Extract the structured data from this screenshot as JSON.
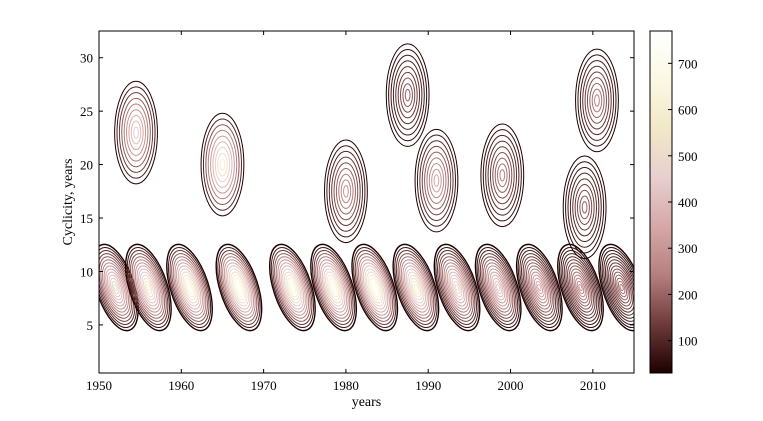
{
  "chart_data": {
    "type": "heatmap",
    "title": "",
    "xlabel": "years",
    "ylabel": "Cyclicity, years",
    "xlim": [
      1950,
      2015
    ],
    "ylim": [
      0.5,
      32.5
    ],
    "x_ticks": [
      1950,
      1960,
      1970,
      1980,
      1990,
      2000,
      2010
    ],
    "y_ticks": [
      5,
      10,
      15,
      20,
      25,
      30
    ],
    "colorbar": {
      "ticks": [
        100,
        200,
        300,
        400,
        500,
        600,
        700
      ],
      "range": [
        30,
        770
      ],
      "colormap": "pink",
      "stops": [
        "#1e0000",
        "#6e3a3a",
        "#b57f7f",
        "#d6a8a8",
        "#e8cfcf",
        "#f2e8c8",
        "#fbf8e4",
        "#ffffff"
      ]
    },
    "grid": false,
    "style": "contour lines",
    "band": {
      "center_period": 8.5,
      "cycles": [
        {
          "x": 1952.0,
          "amplitude": 520
        },
        {
          "x": 1956.0,
          "amplitude": 600
        },
        {
          "x": 1961.0,
          "amplitude": 690
        },
        {
          "x": 1967.0,
          "amplitude": 740
        },
        {
          "x": 1973.5,
          "amplitude": 700
        },
        {
          "x": 1978.5,
          "amplitude": 700
        },
        {
          "x": 1983.5,
          "amplitude": 740
        },
        {
          "x": 1988.5,
          "amplitude": 640
        },
        {
          "x": 1993.5,
          "amplitude": 520
        },
        {
          "x": 1998.5,
          "amplitude": 460
        },
        {
          "x": 2003.5,
          "amplitude": 380
        },
        {
          "x": 2008.5,
          "amplitude": 300
        },
        {
          "x": 2013.5,
          "amplitude": 240
        }
      ]
    },
    "islands": [
      {
        "x": 1965.0,
        "y": 20.0,
        "amplitude": 600
      },
      {
        "x": 1954.5,
        "y": 23.0,
        "amplitude": 450
      },
      {
        "x": 1980.0,
        "y": 17.5,
        "amplitude": 300
      },
      {
        "x": 1991.0,
        "y": 18.5,
        "amplitude": 350
      },
      {
        "x": 1999.0,
        "y": 19.0,
        "amplitude": 250
      },
      {
        "x": 2009.0,
        "y": 16.0,
        "amplitude": 200
      },
      {
        "x": 2010.5,
        "y": 26.0,
        "amplitude": 250
      },
      {
        "x": 1987.5,
        "y": 26.5,
        "amplitude": 200
      }
    ]
  }
}
